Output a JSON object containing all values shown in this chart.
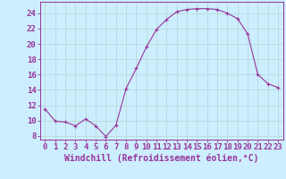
{
  "x": [
    0,
    1,
    2,
    3,
    4,
    5,
    6,
    7,
    8,
    9,
    10,
    11,
    12,
    13,
    14,
    15,
    16,
    17,
    18,
    19,
    20,
    21,
    22,
    23
  ],
  "y": [
    11.5,
    9.9,
    9.8,
    9.3,
    10.2,
    9.3,
    7.9,
    9.4,
    14.2,
    16.8,
    19.6,
    21.9,
    23.2,
    24.2,
    24.5,
    24.6,
    24.6,
    24.5,
    24.0,
    23.3,
    21.3,
    16.0,
    14.8,
    14.3
  ],
  "line_color": "#993399",
  "marker": "+",
  "marker_size": 3.5,
  "marker_linewidth": 0.8,
  "linewidth": 0.8,
  "xlabel": "Windchill (Refroidissement éolien,°C)",
  "xlabel_fontsize": 7,
  "ylabel_ticks": [
    8,
    10,
    12,
    14,
    16,
    18,
    20,
    22,
    24
  ],
  "xtick_labels": [
    "0",
    "1",
    "2",
    "3",
    "4",
    "5",
    "6",
    "7",
    "8",
    "9",
    "10",
    "11",
    "12",
    "13",
    "14",
    "15",
    "16",
    "17",
    "18",
    "19",
    "20",
    "21",
    "22",
    "23"
  ],
  "ylim": [
    7.5,
    25.5
  ],
  "xlim": [
    -0.5,
    23.5
  ],
  "bg_color": "#cceeff",
  "grid_color": "#bbdddd",
  "tick_color": "#993399",
  "label_color": "#993399",
  "spine_color": "#993399",
  "tick_fontsize": 6.5,
  "ytick_fontsize": 6.5
}
